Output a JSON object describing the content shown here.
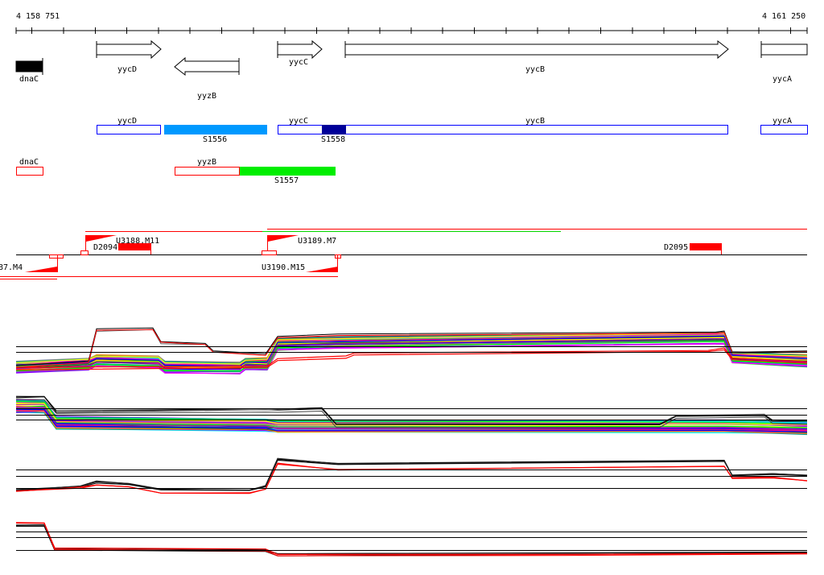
{
  "ruler": {
    "start_label": "4 158 751",
    "end_label": "4 161 250"
  },
  "genes": {
    "dnaC": "dnaC",
    "yycD": "yycD",
    "yyzB": "yyzB",
    "yycC": "yycC",
    "yycB": "yycB",
    "yycA": "yycA"
  },
  "transcripts_plus": {
    "yycD": "yycD",
    "S1556": "S1556",
    "yycC": "yycC",
    "S1558": "S1558",
    "yycB": "yycB",
    "yycA": "yycA"
  },
  "transcripts_minus": {
    "dnaC": "dnaC",
    "yyzB": "yyzB",
    "S1557": "S1557"
  },
  "segments": {
    "U3188": "U3188.M11",
    "D2094": "D2094",
    "U3189": "U3189.M7",
    "D2095": "D2095",
    "U3187": "87.M4",
    "U3190": "U3190.M15"
  },
  "colors": {
    "plus_outline": "#0000ff",
    "S1556": "#0099ff",
    "S1558": "#000099",
    "minus_outline": "#ff0000",
    "S1557": "#00ee00",
    "segment": "#ff0000"
  }
}
